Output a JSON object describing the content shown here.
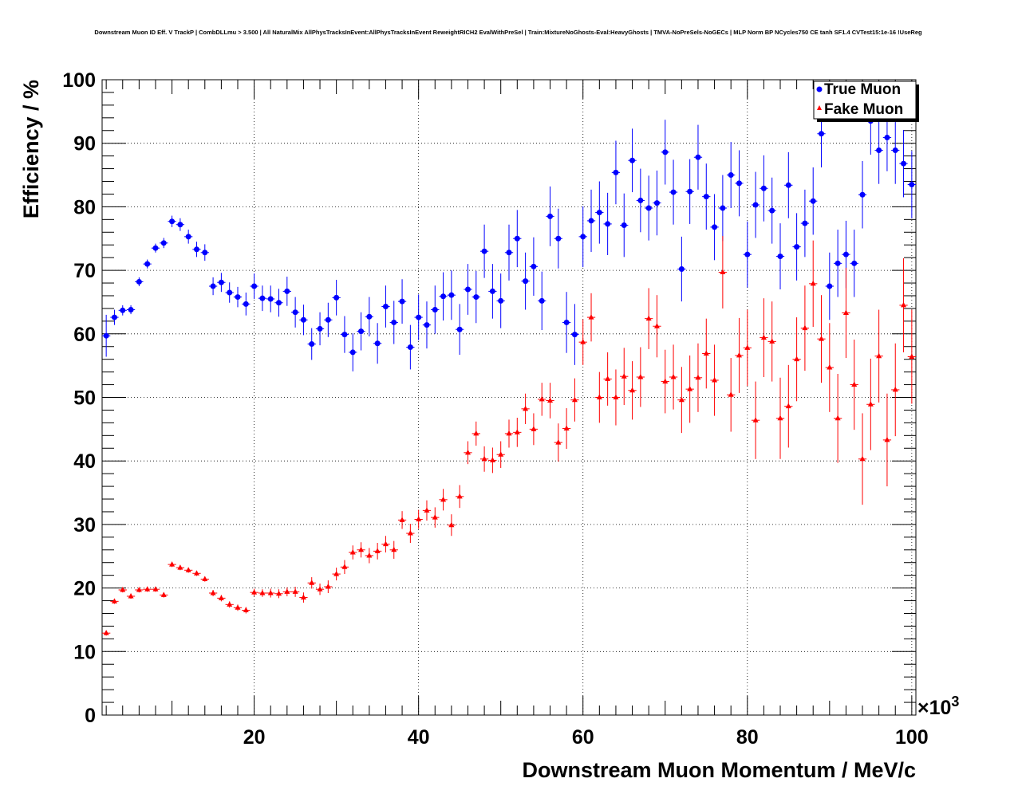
{
  "chart_data": {
    "type": "scatter",
    "title": "Downstream Muon ID Eff. V TrackP | CombDLLmu > 3.500 | All NaturalMix AllPhysTracksInEvent:AllPhysTracksInEvent ReweightRICH2 EvalWithPreSel | Train:MixtureNoGhosts-Eval:HeavyGhosts | TMVA-NoPreSels-NoGECs | MLP Norm BP NCycles750 CE tanh SF1.4 CVTest15:1e-16 !UseReg",
    "xlabel": "Downstream Muon Momentum / MeV/c",
    "ylabel": "Efficiency / %",
    "x_multiplier_label": "×10",
    "x_multiplier_exponent": "3",
    "xlim": [
      1.5,
      100.5
    ],
    "ylim": [
      0,
      100
    ],
    "x_ticks": [
      20,
      40,
      60,
      80,
      100
    ],
    "y_ticks": [
      0,
      10,
      20,
      30,
      40,
      50,
      60,
      70,
      80,
      90,
      100
    ],
    "grid": true,
    "legend_position": "top-right",
    "series": [
      {
        "name": "True Muon",
        "color": "#0000ff",
        "marker": "circle",
        "x": [
          2,
          3,
          4,
          5,
          6,
          7,
          8,
          9,
          10,
          11,
          12,
          13,
          14,
          15,
          16,
          17,
          18,
          19,
          20,
          21,
          22,
          23,
          24,
          25,
          26,
          27,
          28,
          29,
          30,
          31,
          32,
          33,
          34,
          35,
          36,
          37,
          38,
          39,
          40,
          41,
          42,
          43,
          44,
          45,
          46,
          47,
          48,
          49,
          50,
          51,
          52,
          53,
          54,
          55,
          56,
          57,
          58,
          59,
          60,
          61,
          62,
          63,
          64,
          65,
          66,
          67,
          68,
          69,
          70,
          71,
          72,
          73,
          74,
          75,
          76,
          77,
          78,
          79,
          80,
          81,
          82,
          83,
          84,
          85,
          86,
          87,
          88,
          89,
          90,
          91,
          92,
          93,
          94,
          95,
          96,
          97,
          98,
          99,
          100
        ],
        "y": [
          59.7,
          62.6,
          63.7,
          63.8,
          68.2,
          71.0,
          73.5,
          74.3,
          77.7,
          77.2,
          75.3,
          73.3,
          72.8,
          67.5,
          68.1,
          66.5,
          65.8,
          64.7,
          67.5,
          65.6,
          65.5,
          64.9,
          66.7,
          63.4,
          62.2,
          58.4,
          60.8,
          62.2,
          65.7,
          59.9,
          57.1,
          60.4,
          62.7,
          58.5,
          64.3,
          61.8,
          65.1,
          57.9,
          62.6,
          61.4,
          63.8,
          65.9,
          66.1,
          60.7,
          67.0,
          65.8,
          73.0,
          66.7,
          65.2,
          72.8,
          75.0,
          68.3,
          70.6,
          65.2,
          78.5,
          75.0,
          61.8,
          59.9,
          75.3,
          77.8,
          79.1,
          77.3,
          85.4,
          77.1,
          87.3,
          81.0,
          79.8,
          80.6,
          88.6,
          82.3,
          70.2,
          82.4,
          87.8,
          81.6,
          76.8,
          79.8,
          85.0,
          83.7,
          72.5,
          80.3,
          82.9,
          79.4,
          72.2,
          83.4,
          73.7,
          77.4,
          80.9,
          91.5,
          67.5,
          71.1,
          72.5,
          71.1,
          81.9,
          93.5,
          88.9,
          90.9,
          88.9,
          86.8,
          83.5
        ],
        "err": [
          3.3,
          1.2,
          0.8,
          0.7,
          0.7,
          0.7,
          0.7,
          0.8,
          0.9,
          1.0,
          1.1,
          1.2,
          1.3,
          1.4,
          1.5,
          1.6,
          1.6,
          1.8,
          2.0,
          2.0,
          2.1,
          2.2,
          2.3,
          2.4,
          2.4,
          2.5,
          2.6,
          2.7,
          2.8,
          2.9,
          3.0,
          3.0,
          3.1,
          3.2,
          3.3,
          3.4,
          3.5,
          3.5,
          3.6,
          3.7,
          3.8,
          3.8,
          3.9,
          4.0,
          4.0,
          4.1,
          4.2,
          4.3,
          4.3,
          4.4,
          4.5,
          4.5,
          4.6,
          4.6,
          4.7,
          4.7,
          4.8,
          4.8,
          4.8,
          4.9,
          4.9,
          4.9,
          5.0,
          5.0,
          5.0,
          5.0,
          5.1,
          5.1,
          5.1,
          5.1,
          5.1,
          5.1,
          5.1,
          5.2,
          5.2,
          5.2,
          5.2,
          5.2,
          5.2,
          5.2,
          5.2,
          5.2,
          5.2,
          5.2,
          5.3,
          5.3,
          5.3,
          5.3,
          5.3,
          5.3,
          5.3,
          5.3,
          5.3,
          5.3,
          5.3,
          5.3,
          5.3,
          5.3,
          5.3
        ]
      },
      {
        "name": "Fake Muon",
        "color": "#ff0000",
        "marker": "triangle",
        "x": [
          2,
          3,
          4,
          5,
          6,
          7,
          8,
          9,
          10,
          11,
          12,
          13,
          14,
          15,
          16,
          17,
          18,
          19,
          20,
          21,
          22,
          23,
          24,
          25,
          26,
          27,
          28,
          29,
          30,
          31,
          32,
          33,
          34,
          35,
          36,
          37,
          38,
          39,
          40,
          41,
          42,
          43,
          44,
          45,
          46,
          47,
          48,
          49,
          50,
          51,
          52,
          53,
          54,
          55,
          56,
          57,
          58,
          59,
          60,
          61,
          62,
          63,
          64,
          65,
          66,
          67,
          68,
          69,
          70,
          71,
          72,
          73,
          74,
          75,
          76,
          77,
          78,
          79,
          80,
          81,
          82,
          83,
          84,
          85,
          86,
          87,
          88,
          89,
          90,
          91,
          92,
          93,
          94,
          95,
          96,
          97,
          98,
          99,
          100
        ],
        "y": [
          12.9,
          17.9,
          19.7,
          18.7,
          19.7,
          19.8,
          19.8,
          18.9,
          23.7,
          23.2,
          22.8,
          22.3,
          21.4,
          19.2,
          18.4,
          17.4,
          16.9,
          16.5,
          19.3,
          19.2,
          19.2,
          19.1,
          19.4,
          19.4,
          18.5,
          20.8,
          19.8,
          20.2,
          22.2,
          23.3,
          25.6,
          26.0,
          25.1,
          25.8,
          26.9,
          26.0,
          30.7,
          28.6,
          30.8,
          32.2,
          31.1,
          33.9,
          29.9,
          34.4,
          41.3,
          44.3,
          40.3,
          40.1,
          41.0,
          44.3,
          44.5,
          48.2,
          45.0,
          49.7,
          49.5,
          42.9,
          45.1,
          49.6,
          58.7,
          62.6,
          50.0,
          52.9,
          50.0,
          53.3,
          51.1,
          53.2,
          62.4,
          61.2,
          52.5,
          53.2,
          49.6,
          51.3,
          53.1,
          56.9,
          52.7,
          69.7,
          50.4,
          56.6,
          57.8,
          46.4,
          59.4,
          58.8,
          46.7,
          48.6,
          56.0,
          60.9,
          67.9,
          59.2,
          54.7,
          46.7,
          63.3,
          52.0,
          40.3,
          48.9,
          56.5,
          43.3,
          51.2,
          64.5,
          56.4
        ],
        "err": [
          0.4,
          0.4,
          0.4,
          0.4,
          0.4,
          0.4,
          0.4,
          0.4,
          0.4,
          0.4,
          0.4,
          0.4,
          0.4,
          0.5,
          0.5,
          0.5,
          0.5,
          0.5,
          0.6,
          0.6,
          0.7,
          0.7,
          0.7,
          0.8,
          0.8,
          0.9,
          0.9,
          1.0,
          1.0,
          1.1,
          1.1,
          1.2,
          1.2,
          1.3,
          1.3,
          1.4,
          1.4,
          1.5,
          1.5,
          1.6,
          1.6,
          1.7,
          1.7,
          1.8,
          1.8,
          1.9,
          2.0,
          2.0,
          2.1,
          2.2,
          2.3,
          2.4,
          2.5,
          2.6,
          2.8,
          3.0,
          3.2,
          3.4,
          3.6,
          3.8,
          4.0,
          4.2,
          4.4,
          4.5,
          4.6,
          4.7,
          4.8,
          4.9,
          5.0,
          5.1,
          5.2,
          5.3,
          5.4,
          5.5,
          5.6,
          5.7,
          5.8,
          5.9,
          6.0,
          6.1,
          6.2,
          6.3,
          6.4,
          6.5,
          6.6,
          6.7,
          6.8,
          6.9,
          7.0,
          7.0,
          7.1,
          7.1,
          7.2,
          7.2,
          7.3,
          7.3,
          7.3,
          7.4,
          7.4
        ]
      }
    ]
  }
}
